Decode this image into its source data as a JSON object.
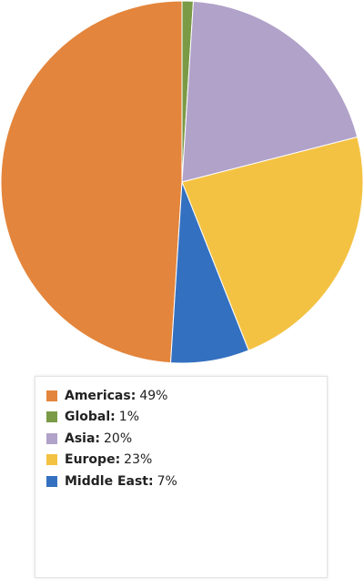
{
  "chart_data": {
    "type": "pie",
    "categories": [
      "Americas:",
      "Global:",
      "Asia:",
      "Europe:",
      "Middle East:"
    ],
    "values": [
      49,
      1,
      20,
      23,
      7
    ],
    "value_labels": [
      "49%",
      "1%",
      "20%",
      "23%",
      "7%"
    ],
    "colors": [
      "#e3853c",
      "#7a9a45",
      "#b1a2c9",
      "#f4c242",
      "#3470c0"
    ]
  }
}
